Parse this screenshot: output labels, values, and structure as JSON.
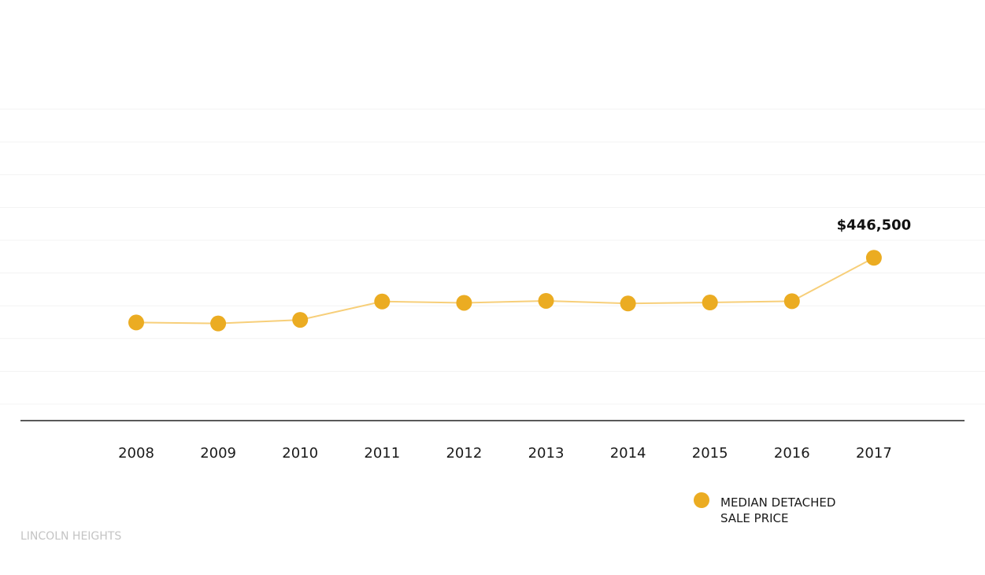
{
  "chart_data": {
    "type": "line",
    "title": "",
    "xlabel": "",
    "ylabel": "",
    "categories": [
      "2008",
      "2009",
      "2010",
      "2011",
      "2012",
      "2013",
      "2014",
      "2015",
      "2016",
      "2017"
    ],
    "series": [
      {
        "name": "MEDIAN DETACHED SALE PRICE",
        "legend_lines": [
          "MEDIAN DETACHED",
          "SALE PRICE"
        ],
        "color": "#ebac22",
        "line_color": "#f7cf7a",
        "values": [
          249000,
          246000,
          257000,
          313000,
          309000,
          315000,
          307000,
          310000,
          314000,
          446500
        ]
      }
    ],
    "data_labels": [
      {
        "category": "2017",
        "text": "$446,500"
      }
    ],
    "ylim": [
      0,
      900000
    ],
    "y_gridlines": true,
    "y_tick_labels_shown": false,
    "legend_position": "bottom-right"
  },
  "footer": {
    "text": "LINCOLN HEIGHTS"
  }
}
